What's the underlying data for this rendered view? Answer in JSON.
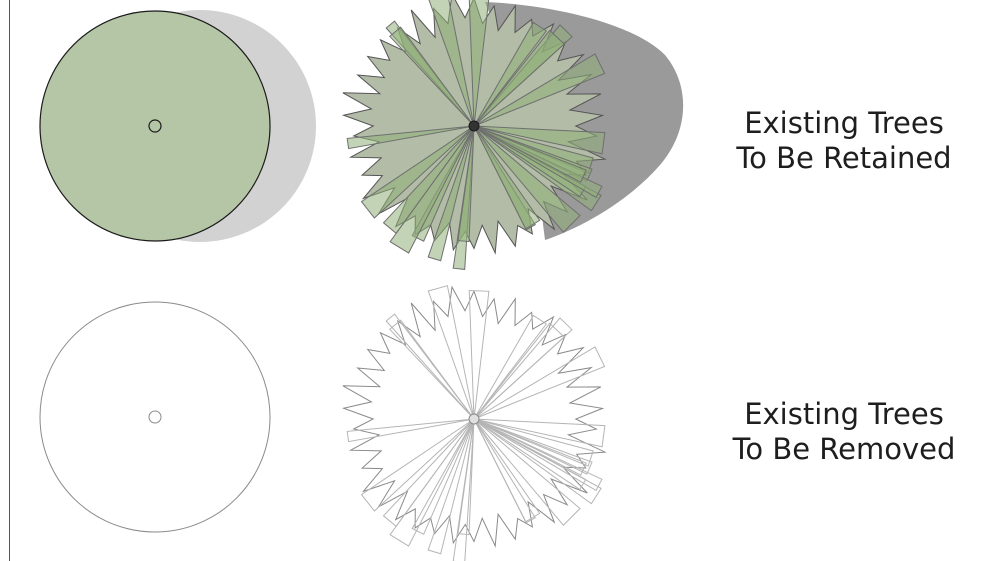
{
  "legend": {
    "retained": {
      "line1": "Existing Trees",
      "line2": "To Be Retained"
    },
    "removed": {
      "line1": "Existing Trees",
      "line2": "To Be Removed"
    }
  },
  "colors": {
    "retained_fill": "#b5c6a6",
    "retained_canopy": "#b2bca6",
    "leaf_green": "#8fb078",
    "shadow_light": "#d2d2d2",
    "shadow_dark": "#9a9a9a",
    "outline_dark": "#1a1a1a",
    "outline_removed": "#8a8a8a",
    "outline_removed_light": "#b5b5b5"
  },
  "symbols": [
    {
      "name": "circle-tree-retained-symbol",
      "kind": "circle",
      "status": "retained"
    },
    {
      "name": "canopy-tree-retained-symbol",
      "kind": "canopy",
      "status": "retained"
    },
    {
      "name": "circle-tree-removed-symbol",
      "kind": "circle",
      "status": "removed"
    },
    {
      "name": "canopy-tree-removed-symbol",
      "kind": "canopy",
      "status": "removed"
    }
  ]
}
